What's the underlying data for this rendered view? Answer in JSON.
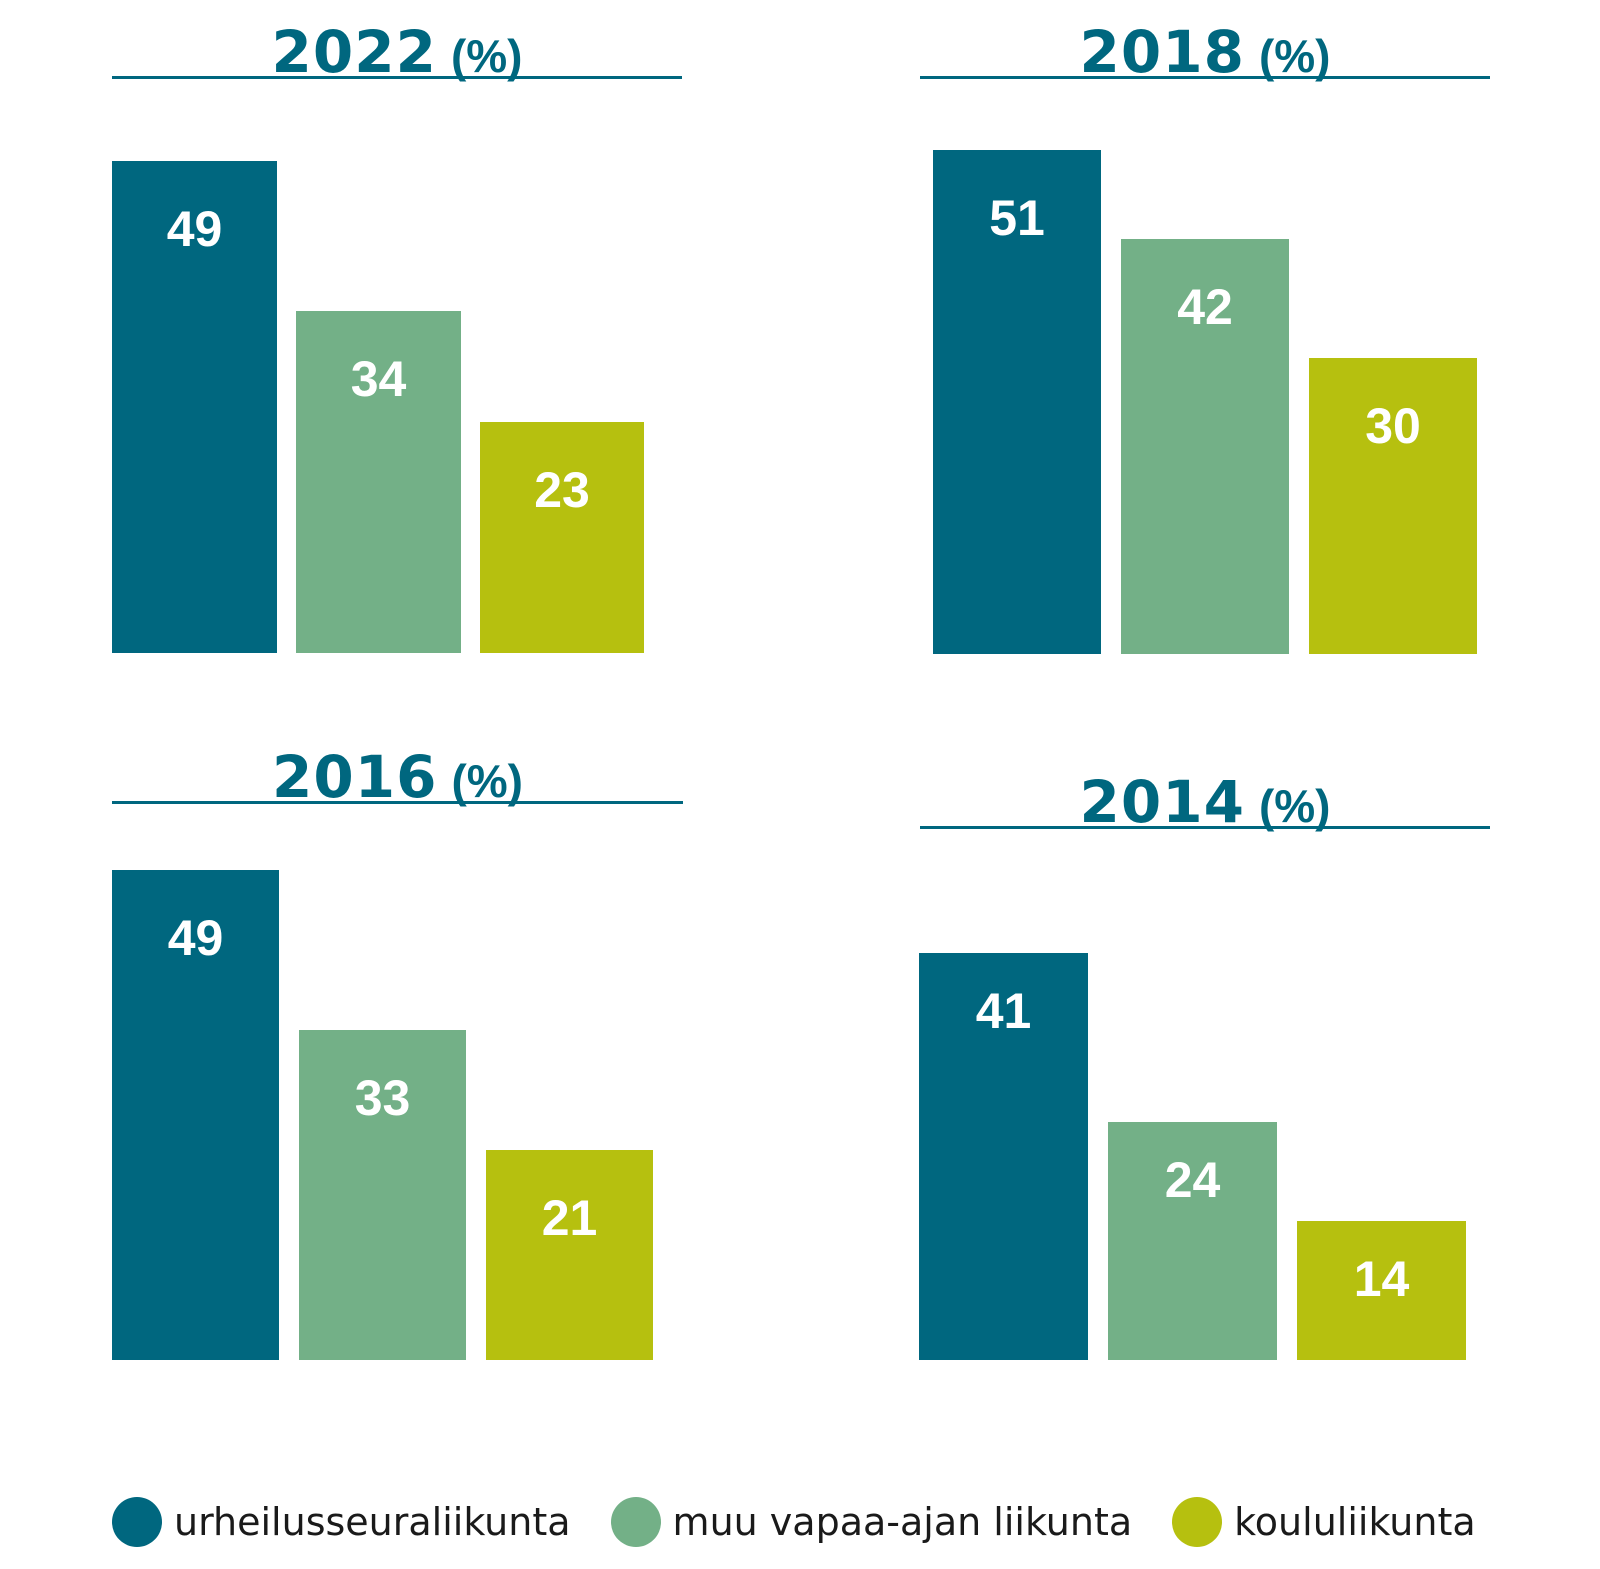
{
  "colors": {
    "title": "#00677f",
    "series": [
      "#00677f",
      "#73b087",
      "#b6c00f"
    ]
  },
  "legend": [
    {
      "label": "urheilusseuraliikunta",
      "color": "#00677f"
    },
    {
      "label": "muu vapaa-ajan liikunta",
      "color": "#73b087"
    },
    {
      "label": "koululiikunta",
      "color": "#b6c00f"
    }
  ],
  "chart_data": [
    {
      "type": "bar",
      "year": "2022",
      "unit": "(%)",
      "categories": [
        "urheilusseuraliikunta",
        "muu vapaa-ajan liikunta",
        "koululiikunta"
      ],
      "values": [
        49,
        34,
        23
      ]
    },
    {
      "type": "bar",
      "year": "2018",
      "unit": "(%)",
      "categories": [
        "urheilusseuraliikunta",
        "muu vapaa-ajan liikunta",
        "koululiikunta"
      ],
      "values": [
        51,
        42,
        30
      ]
    },
    {
      "type": "bar",
      "year": "2016",
      "unit": "(%)",
      "categories": [
        "urheilusseuraliikunta",
        "muu vapaa-ajan liikunta",
        "koululiikunta"
      ],
      "values": [
        49,
        33,
        21
      ]
    },
    {
      "type": "bar",
      "year": "2014",
      "unit": "(%)",
      "categories": [
        "urheilusseuraliikunta",
        "muu vapaa-ajan liikunta",
        "koululiikunta"
      ],
      "values": [
        41,
        24,
        14
      ]
    }
  ]
}
